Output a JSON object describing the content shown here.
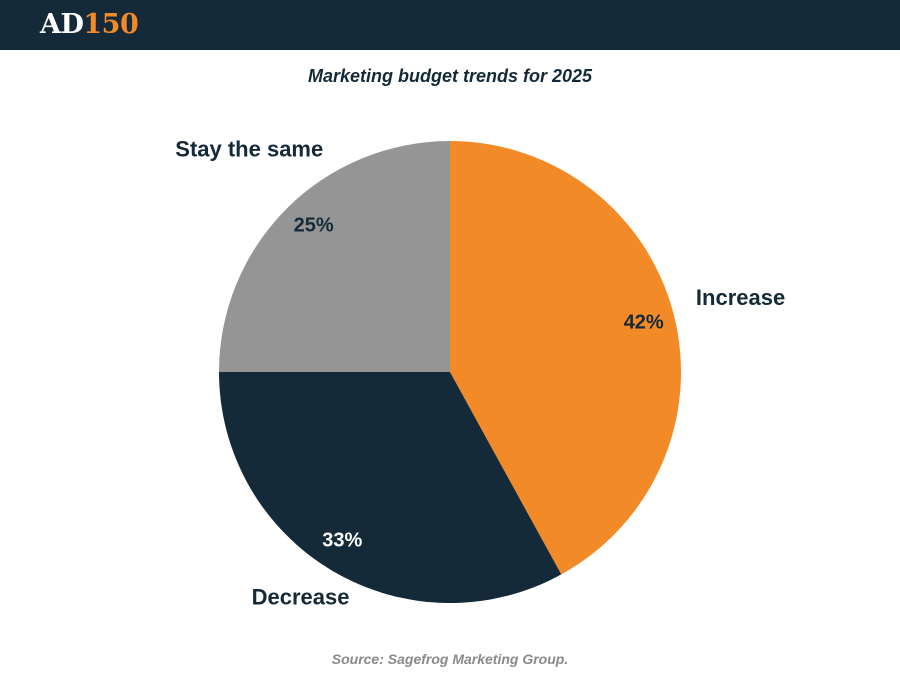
{
  "header": {
    "logo_ad": "AD",
    "logo_num": "150"
  },
  "chart_data": {
    "type": "pie",
    "title": "Marketing budget trends for 2025",
    "categories": [
      "Increase",
      "Decrease",
      "Stay the same"
    ],
    "values": [
      42,
      33,
      25
    ],
    "value_labels": [
      "42%",
      "33%",
      "25%"
    ],
    "colors": [
      "#f28a28",
      "#152a38",
      "#959595"
    ],
    "label_colors": [
      "#152a38",
      "#ffffff",
      "#152a38"
    ],
    "start_angle": "12 o'clock",
    "direction": "clockwise",
    "legend": "none"
  },
  "footer": {
    "source": "Source: Sagefrog Marketing Group."
  },
  "colors": {
    "header_bg": "#152a38",
    "accent": "#f28a28"
  }
}
